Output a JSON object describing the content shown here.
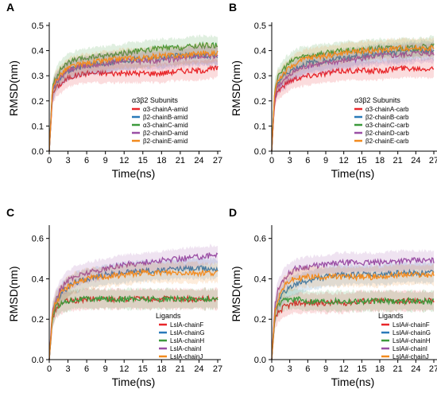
{
  "chart_data": [
    {
      "panel_label": "A",
      "type": "line",
      "xlabel": "Time(ns)",
      "ylabel": "RMSD(nm)",
      "xlim": [
        0,
        27
      ],
      "ylim": [
        0,
        0.5
      ],
      "xticks": [
        0,
        3,
        6,
        9,
        12,
        15,
        18,
        21,
        24,
        27
      ],
      "yticks": [
        "0.0",
        "0.1",
        "0.2",
        "0.3",
        "0.4",
        "0.5"
      ],
      "legend_title": "α3β2 Subunits",
      "legend_position": "right-center",
      "bands": true,
      "series": [
        {
          "name": "α3-chainA-amid",
          "color": "#e8262a",
          "x": [
            0,
            0.5,
            1,
            2,
            3,
            4,
            6,
            9,
            12,
            15,
            18,
            21,
            24,
            27
          ],
          "y": [
            0,
            0.22,
            0.25,
            0.27,
            0.29,
            0.3,
            0.31,
            0.31,
            0.31,
            0.31,
            0.31,
            0.32,
            0.32,
            0.33
          ]
        },
        {
          "name": "β2-chainB-amid",
          "color": "#2a7ab9",
          "x": [
            0,
            0.5,
            1,
            2,
            3,
            4,
            6,
            9,
            12,
            15,
            18,
            21,
            24,
            27
          ],
          "y": [
            0,
            0.23,
            0.27,
            0.3,
            0.32,
            0.33,
            0.34,
            0.35,
            0.36,
            0.37,
            0.37,
            0.38,
            0.38,
            0.38
          ]
        },
        {
          "name": "α3-chainC-amid",
          "color": "#3c9a3c",
          "x": [
            0,
            0.5,
            1,
            2,
            3,
            4,
            6,
            9,
            12,
            15,
            18,
            21,
            24,
            27
          ],
          "y": [
            0,
            0.25,
            0.29,
            0.33,
            0.35,
            0.36,
            0.37,
            0.38,
            0.39,
            0.4,
            0.41,
            0.41,
            0.42,
            0.42
          ]
        },
        {
          "name": "β2-chainD-amid",
          "color": "#9a4fa5",
          "x": [
            0,
            0.5,
            1,
            2,
            3,
            4,
            6,
            9,
            12,
            15,
            18,
            21,
            24,
            27
          ],
          "y": [
            0,
            0.23,
            0.27,
            0.3,
            0.32,
            0.33,
            0.34,
            0.35,
            0.36,
            0.36,
            0.36,
            0.37,
            0.38,
            0.38
          ]
        },
        {
          "name": "β2-chainE-amid",
          "color": "#f28a1e",
          "x": [
            0,
            0.5,
            1,
            2,
            3,
            4,
            6,
            9,
            12,
            15,
            18,
            21,
            24,
            27
          ],
          "y": [
            0,
            0.24,
            0.28,
            0.31,
            0.33,
            0.34,
            0.35,
            0.36,
            0.37,
            0.37,
            0.38,
            0.38,
            0.39,
            0.39
          ]
        }
      ]
    },
    {
      "panel_label": "B",
      "type": "line",
      "xlabel": "Time(ns)",
      "ylabel": "RMSD(nm)",
      "xlim": [
        0,
        27
      ],
      "ylim": [
        0,
        0.5
      ],
      "xticks": [
        0,
        3,
        6,
        9,
        12,
        15,
        18,
        21,
        24,
        27
      ],
      "yticks": [
        "0.0",
        "0.1",
        "0.2",
        "0.3",
        "0.4",
        "0.5"
      ],
      "legend_title": "α3β2 Subunits",
      "legend_position": "right-center",
      "bands": true,
      "series": [
        {
          "name": "α3-chainA-carb",
          "color": "#e8262a",
          "x": [
            0,
            0.5,
            1,
            2,
            3,
            4,
            6,
            9,
            12,
            15,
            18,
            21,
            24,
            27
          ],
          "y": [
            0,
            0.21,
            0.24,
            0.26,
            0.28,
            0.29,
            0.3,
            0.31,
            0.32,
            0.32,
            0.32,
            0.33,
            0.33,
            0.33
          ]
        },
        {
          "name": "β2-chainB-carb",
          "color": "#2a7ab9",
          "x": [
            0,
            0.5,
            1,
            2,
            3,
            4,
            6,
            9,
            12,
            15,
            18,
            21,
            24,
            27
          ],
          "y": [
            0,
            0.23,
            0.27,
            0.3,
            0.32,
            0.33,
            0.35,
            0.36,
            0.37,
            0.38,
            0.39,
            0.39,
            0.4,
            0.4
          ]
        },
        {
          "name": "α3-chainC-carb",
          "color": "#3c9a3c",
          "x": [
            0,
            0.5,
            1,
            2,
            3,
            4,
            6,
            9,
            12,
            15,
            18,
            21,
            24,
            27
          ],
          "y": [
            0,
            0.25,
            0.29,
            0.33,
            0.35,
            0.37,
            0.38,
            0.39,
            0.4,
            0.4,
            0.41,
            0.41,
            0.41,
            0.42
          ]
        },
        {
          "name": "β2-chainD-carb",
          "color": "#9a4fa5",
          "x": [
            0,
            0.5,
            1,
            2,
            3,
            4,
            6,
            9,
            12,
            15,
            18,
            21,
            24,
            27
          ],
          "y": [
            0,
            0.22,
            0.26,
            0.28,
            0.3,
            0.32,
            0.34,
            0.35,
            0.36,
            0.37,
            0.38,
            0.38,
            0.39,
            0.39
          ]
        },
        {
          "name": "β2-chainE-carb",
          "color": "#f28a1e",
          "x": [
            0,
            0.5,
            1,
            2,
            3,
            4,
            6,
            9,
            12,
            15,
            18,
            21,
            24,
            27
          ],
          "y": [
            0,
            0.24,
            0.28,
            0.31,
            0.33,
            0.35,
            0.37,
            0.38,
            0.39,
            0.4,
            0.4,
            0.41,
            0.41,
            0.41
          ]
        }
      ]
    },
    {
      "panel_label": "C",
      "type": "line",
      "xlabel": "Time(ns)",
      "ylabel": "RMSD(nm)",
      "xlim": [
        0,
        27
      ],
      "ylim": [
        0,
        0.65
      ],
      "xticks": [
        0,
        3,
        6,
        9,
        12,
        15,
        18,
        21,
        24,
        27
      ],
      "yticks": [
        "0.0",
        "0.2",
        "0.4",
        "0.6"
      ],
      "ytick_values": [
        0,
        0.2,
        0.4,
        0.6
      ],
      "legend_title": "Ligands",
      "legend_position": "bottom-right",
      "bands": true,
      "series": [
        {
          "name": "LslA-chainF",
          "color": "#e8262a",
          "x": [
            0,
            0.5,
            1,
            2,
            3,
            4,
            6,
            9,
            12,
            15,
            18,
            21,
            24,
            27
          ],
          "y": [
            0,
            0.2,
            0.25,
            0.28,
            0.29,
            0.29,
            0.3,
            0.3,
            0.3,
            0.3,
            0.3,
            0.3,
            0.3,
            0.3
          ]
        },
        {
          "name": "LslA-chainG",
          "color": "#2a7ab9",
          "x": [
            0,
            0.5,
            1,
            2,
            3,
            4,
            6,
            9,
            12,
            15,
            18,
            21,
            24,
            27
          ],
          "y": [
            0,
            0.22,
            0.28,
            0.33,
            0.36,
            0.38,
            0.4,
            0.42,
            0.43,
            0.44,
            0.44,
            0.45,
            0.45,
            0.45
          ]
        },
        {
          "name": "LslA-chainH",
          "color": "#3c9a3c",
          "x": [
            0,
            0.5,
            1,
            2,
            3,
            4,
            6,
            9,
            12,
            15,
            18,
            21,
            24,
            27
          ],
          "y": [
            0,
            0.21,
            0.26,
            0.28,
            0.29,
            0.3,
            0.3,
            0.3,
            0.3,
            0.3,
            0.3,
            0.3,
            0.3,
            0.3
          ]
        },
        {
          "name": "LslA-chainI",
          "color": "#9a4fa5",
          "x": [
            0,
            0.5,
            1,
            2,
            3,
            4,
            6,
            9,
            12,
            15,
            18,
            21,
            24,
            27
          ],
          "y": [
            0,
            0.24,
            0.3,
            0.36,
            0.39,
            0.41,
            0.43,
            0.45,
            0.47,
            0.48,
            0.49,
            0.5,
            0.51,
            0.52
          ]
        },
        {
          "name": "LslA-chainJ",
          "color": "#f28a1e",
          "x": [
            0,
            0.5,
            1,
            2,
            3,
            4,
            6,
            9,
            12,
            15,
            18,
            21,
            24,
            27
          ],
          "y": [
            0,
            0.23,
            0.28,
            0.33,
            0.36,
            0.38,
            0.4,
            0.41,
            0.42,
            0.43,
            0.43,
            0.43,
            0.43,
            0.43
          ]
        }
      ]
    },
    {
      "panel_label": "D",
      "type": "line",
      "xlabel": "Time(ns)",
      "ylabel": "RMSD(nm)",
      "xlim": [
        0,
        27
      ],
      "ylim": [
        0,
        0.65
      ],
      "xticks": [
        0,
        3,
        6,
        9,
        12,
        15,
        18,
        21,
        24,
        27
      ],
      "yticks": [
        "0.0",
        "0.2",
        "0.4",
        "0.6"
      ],
      "ytick_values": [
        0,
        0.2,
        0.4,
        0.6
      ],
      "legend_title": "Ligands",
      "legend_position": "bottom-right",
      "bands": true,
      "series": [
        {
          "name": "LslA#-chainF",
          "color": "#e8262a",
          "x": [
            0,
            0.5,
            1,
            2,
            3,
            4,
            6,
            9,
            12,
            15,
            18,
            21,
            24,
            27
          ],
          "y": [
            0,
            0.19,
            0.23,
            0.26,
            0.27,
            0.28,
            0.28,
            0.28,
            0.28,
            0.29,
            0.29,
            0.29,
            0.29,
            0.29
          ]
        },
        {
          "name": "LslA#-chainG",
          "color": "#2a7ab9",
          "x": [
            0,
            0.5,
            1,
            2,
            3,
            4,
            6,
            9,
            12,
            15,
            18,
            21,
            24,
            27
          ],
          "y": [
            0,
            0.22,
            0.28,
            0.33,
            0.36,
            0.37,
            0.39,
            0.41,
            0.42,
            0.42,
            0.42,
            0.43,
            0.43,
            0.43
          ]
        },
        {
          "name": "LslA#-chainH",
          "color": "#3c9a3c",
          "x": [
            0,
            0.5,
            1,
            2,
            3,
            4,
            6,
            9,
            12,
            15,
            18,
            21,
            24,
            27
          ],
          "y": [
            0,
            0.22,
            0.27,
            0.29,
            0.3,
            0.3,
            0.29,
            0.29,
            0.29,
            0.29,
            0.29,
            0.29,
            0.29,
            0.29
          ]
        },
        {
          "name": "LslA#-chainI",
          "color": "#9a4fa5",
          "x": [
            0,
            0.5,
            1,
            2,
            3,
            4,
            6,
            9,
            12,
            15,
            18,
            21,
            24,
            27
          ],
          "y": [
            0,
            0.26,
            0.34,
            0.4,
            0.43,
            0.45,
            0.46,
            0.47,
            0.48,
            0.48,
            0.48,
            0.49,
            0.49,
            0.49
          ]
        },
        {
          "name": "LslA#-chainJ",
          "color": "#f28a1e",
          "x": [
            0,
            0.5,
            1,
            2,
            3,
            4,
            6,
            9,
            12,
            15,
            18,
            21,
            24,
            27
          ],
          "y": [
            0,
            0.23,
            0.3,
            0.36,
            0.39,
            0.4,
            0.41,
            0.41,
            0.41,
            0.41,
            0.41,
            0.42,
            0.42,
            0.42
          ]
        }
      ]
    }
  ]
}
